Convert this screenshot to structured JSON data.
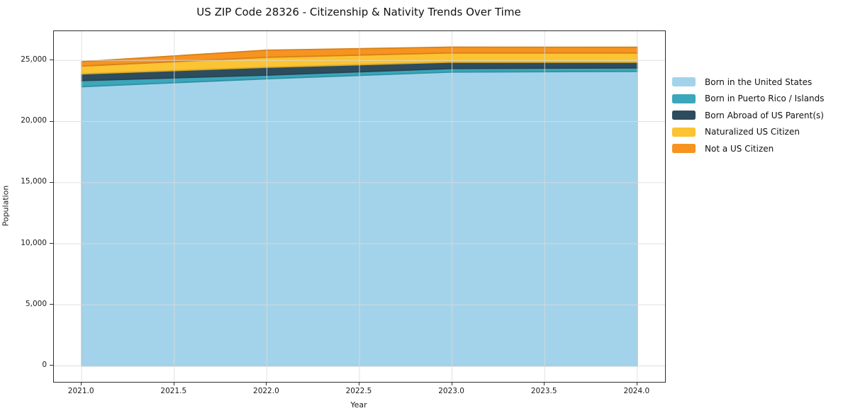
{
  "title": "US ZIP Code 28326 - Citizenship & Nativity Trends Over Time",
  "chart_data": {
    "type": "area",
    "stacked": true,
    "title": "US ZIP Code 28326 - Citizenship & Nativity Trends Over Time",
    "xlabel": "Year",
    "ylabel": "Population",
    "x": [
      2021,
      2022,
      2023,
      2024
    ],
    "series": [
      {
        "name": "Born in the United States",
        "color": "#a3d3ea",
        "values": [
          22850,
          23500,
          24050,
          24100
        ]
      },
      {
        "name": "Born in Puerto Rico / Islands",
        "color": "#3aa7bb",
        "values": [
          500,
          300,
          290,
          290
        ]
      },
      {
        "name": "Born Abroad of US Parent(s)",
        "color": "#2d4d5e",
        "values": [
          550,
          640,
          520,
          460
        ]
      },
      {
        "name": "Naturalized US Citizen",
        "color": "#fcc332",
        "values": [
          640,
          820,
          760,
          760
        ]
      },
      {
        "name": "Not a US Citizen",
        "color": "#f7941f",
        "values": [
          360,
          580,
          470,
          470
        ]
      }
    ],
    "x_ticks": {
      "values": [
        2021,
        2021.5,
        2022,
        2022.5,
        2023,
        2023.5,
        2024
      ],
      "labels": [
        "2021.0",
        "2021.5",
        "2022.0",
        "2022.5",
        "2023.0",
        "2023.5",
        "2024.0"
      ]
    },
    "y_ticks": {
      "values": [
        0,
        5000,
        10000,
        15000,
        20000,
        25000
      ],
      "labels": [
        "0",
        "5,000",
        "10,000",
        "15,000",
        "20,000",
        "25,000"
      ]
    },
    "xlim": [
      2020.85,
      2024.15
    ],
    "ylim": [
      -1305,
      27395
    ],
    "grid": true,
    "legend_position": "right"
  },
  "colors": {
    "background": "#ffffff",
    "grid": "#dbdbdb",
    "spine": "#2e2e2e",
    "text": "#1a1a1a"
  }
}
